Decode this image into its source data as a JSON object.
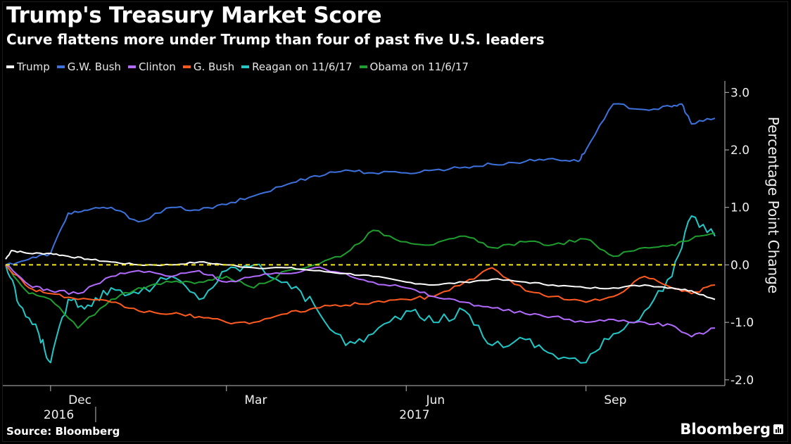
{
  "title": "Trump's Treasury Market Score",
  "subtitle": "Curve flattens more under Trump than four of past five U.S. leaders",
  "source": "Source: Bloomberg",
  "brand": "Bloomberg",
  "chart_data": {
    "type": "line",
    "ylabel": "Percentage Point Change",
    "ylim": [
      -2.1,
      3.2
    ],
    "yticks": [
      3.0,
      2.0,
      1.0,
      0.0,
      -1.0,
      -2.0
    ],
    "ytick_labels": [
      "3.0",
      "2.0",
      "1.0",
      "0.0",
      "-1.0",
      "-2.0"
    ],
    "x_range": [
      "2016-11-08",
      "2017-11-06"
    ],
    "month_ticks": [
      {
        "label": "Dec",
        "date": "2016-12-01"
      },
      {
        "label": "Mar",
        "date": "2017-03-01"
      },
      {
        "label": "Jun",
        "date": "2017-06-01"
      },
      {
        "label": "Sep",
        "date": "2017-09-01"
      }
    ],
    "year_labels": [
      {
        "label": "2016",
        "date": "2016-12-01"
      },
      {
        "label": "2017",
        "date": "2017-06-01"
      }
    ],
    "zero_line": {
      "value": 0.0,
      "color": "#f5e51c",
      "style": "dashed"
    },
    "grid": false,
    "series": [
      {
        "name": "Trump",
        "color": "#ffffff",
        "x": [
          "2016-11-08",
          "2016-11-11",
          "2016-11-20",
          "2016-12-01",
          "2016-12-10",
          "2016-12-20",
          "2017-01-01",
          "2017-01-15",
          "2017-02-01",
          "2017-02-15",
          "2017-03-01",
          "2017-03-15",
          "2017-04-01",
          "2017-04-15",
          "2017-05-01",
          "2017-05-15",
          "2017-06-01",
          "2017-06-15",
          "2017-07-01",
          "2017-07-15",
          "2017-08-01",
          "2017-08-15",
          "2017-09-01",
          "2017-09-15",
          "2017-10-01",
          "2017-10-15",
          "2017-10-25",
          "2017-11-06"
        ],
        "y": [
          0.1,
          0.25,
          0.2,
          0.2,
          0.15,
          0.1,
          0.05,
          0.0,
          0.0,
          0.05,
          0.0,
          -0.05,
          -0.05,
          -0.1,
          -0.15,
          -0.2,
          -0.3,
          -0.35,
          -0.3,
          -0.25,
          -0.3,
          -0.35,
          -0.4,
          -0.4,
          -0.35,
          -0.4,
          -0.45,
          -0.6
        ]
      },
      {
        "name": "G.W. Bush",
        "color": "#3d72dd",
        "x": [
          "2016-11-08",
          "2016-11-20",
          "2016-12-01",
          "2016-12-10",
          "2016-12-20",
          "2017-01-01",
          "2017-01-15",
          "2017-02-01",
          "2017-02-15",
          "2017-03-01",
          "2017-03-15",
          "2017-04-01",
          "2017-04-15",
          "2017-05-01",
          "2017-05-15",
          "2017-06-01",
          "2017-06-15",
          "2017-07-01",
          "2017-07-15",
          "2017-08-01",
          "2017-08-15",
          "2017-08-28",
          "2017-09-01",
          "2017-09-15",
          "2017-10-01",
          "2017-10-15",
          "2017-10-20",
          "2017-10-25",
          "2017-11-06"
        ],
        "y": [
          0.0,
          0.1,
          0.2,
          0.9,
          0.95,
          1.0,
          0.75,
          1.0,
          0.95,
          1.05,
          1.2,
          1.4,
          1.55,
          1.65,
          1.6,
          1.6,
          1.65,
          1.7,
          1.75,
          1.8,
          1.85,
          1.8,
          2.0,
          2.8,
          2.7,
          2.75,
          2.8,
          2.45,
          2.55
        ]
      },
      {
        "name": "Clinton",
        "color": "#b36bff",
        "x": [
          "2016-11-08",
          "2016-11-20",
          "2016-12-01",
          "2016-12-15",
          "2017-01-01",
          "2017-01-15",
          "2017-02-01",
          "2017-02-15",
          "2017-03-01",
          "2017-03-15",
          "2017-04-01",
          "2017-04-15",
          "2017-05-01",
          "2017-05-15",
          "2017-06-01",
          "2017-06-15",
          "2017-07-01",
          "2017-07-15",
          "2017-08-01",
          "2017-08-15",
          "2017-09-01",
          "2017-09-15",
          "2017-10-01",
          "2017-10-15",
          "2017-10-25",
          "2017-11-06"
        ],
        "y": [
          0.0,
          -0.35,
          -0.45,
          -0.5,
          -0.2,
          -0.1,
          -0.2,
          -0.1,
          -0.3,
          -0.2,
          -0.15,
          -0.05,
          -0.15,
          -0.3,
          -0.4,
          -0.55,
          -0.65,
          -0.75,
          -0.85,
          -0.9,
          -1.0,
          -0.95,
          -1.0,
          -1.05,
          -1.25,
          -1.1
        ]
      },
      {
        "name": "G. Bush",
        "color": "#ff5a1f",
        "x": [
          "2016-11-08",
          "2016-11-20",
          "2016-12-01",
          "2016-12-15",
          "2017-01-01",
          "2017-01-15",
          "2017-02-01",
          "2017-02-15",
          "2017-03-01",
          "2017-03-15",
          "2017-04-01",
          "2017-04-15",
          "2017-05-01",
          "2017-05-15",
          "2017-06-01",
          "2017-06-15",
          "2017-07-01",
          "2017-07-15",
          "2017-08-01",
          "2017-08-15",
          "2017-09-01",
          "2017-09-15",
          "2017-10-01",
          "2017-10-15",
          "2017-10-25",
          "2017-11-06"
        ],
        "y": [
          0.0,
          -0.4,
          -0.5,
          -0.6,
          -0.65,
          -0.8,
          -0.85,
          -0.9,
          -1.0,
          -1.0,
          -0.85,
          -0.75,
          -0.7,
          -0.65,
          -0.6,
          -0.55,
          -0.3,
          -0.05,
          -0.45,
          -0.55,
          -0.65,
          -0.55,
          -0.2,
          -0.4,
          -0.5,
          -0.35
        ]
      },
      {
        "name": "Reagan on 11/6/17",
        "color": "#22c8c8",
        "x": [
          "2016-11-08",
          "2016-11-15",
          "2016-11-25",
          "2016-12-01",
          "2016-12-10",
          "2016-12-20",
          "2017-01-01",
          "2017-01-15",
          "2017-02-01",
          "2017-02-15",
          "2017-03-01",
          "2017-03-15",
          "2017-04-01",
          "2017-04-15",
          "2017-05-01",
          "2017-05-15",
          "2017-06-01",
          "2017-06-15",
          "2017-07-01",
          "2017-07-15",
          "2017-08-01",
          "2017-08-15",
          "2017-09-01",
          "2017-09-15",
          "2017-10-01",
          "2017-10-15",
          "2017-10-25",
          "2017-11-06"
        ],
        "y": [
          0.0,
          -0.7,
          -1.2,
          -1.7,
          -0.6,
          -0.7,
          -0.4,
          -0.5,
          -0.2,
          -0.6,
          -0.1,
          0.0,
          -0.3,
          -0.7,
          -1.4,
          -1.2,
          -0.8,
          -1.0,
          -0.8,
          -1.4,
          -1.3,
          -1.55,
          -1.7,
          -1.2,
          -0.8,
          -0.2,
          0.85,
          0.5
        ]
      },
      {
        "name": "Obama on 11/6/17",
        "color": "#1e9e2e",
        "x": [
          "2016-11-08",
          "2016-11-20",
          "2016-12-01",
          "2016-12-15",
          "2017-01-01",
          "2017-01-15",
          "2017-02-01",
          "2017-02-15",
          "2017-03-01",
          "2017-03-15",
          "2017-04-01",
          "2017-04-15",
          "2017-05-01",
          "2017-05-15",
          "2017-06-01",
          "2017-06-15",
          "2017-07-01",
          "2017-07-15",
          "2017-08-01",
          "2017-08-15",
          "2017-09-01",
          "2017-09-15",
          "2017-10-01",
          "2017-10-15",
          "2017-10-25",
          "2017-11-06"
        ],
        "y": [
          0.0,
          -0.5,
          -0.6,
          -1.1,
          -0.6,
          -0.4,
          -0.3,
          -0.3,
          -0.2,
          -0.4,
          -0.1,
          0.0,
          0.2,
          0.6,
          0.4,
          0.35,
          0.5,
          0.3,
          0.4,
          0.35,
          0.45,
          0.15,
          0.3,
          0.35,
          0.45,
          0.55
        ]
      }
    ]
  }
}
